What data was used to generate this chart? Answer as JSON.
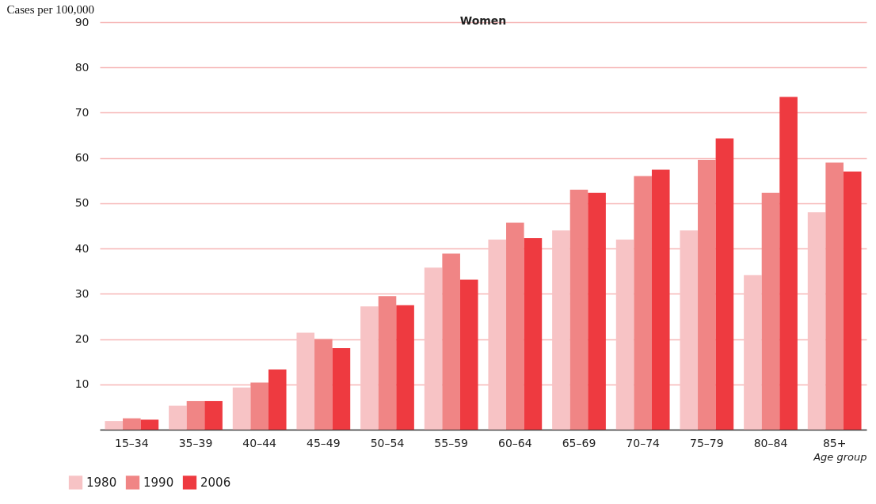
{
  "chart_data": {
    "type": "bar",
    "title": "Women",
    "xlabel": "Age group",
    "ylabel": "Cases per 100,000",
    "categories": [
      "15–34",
      "35–39",
      "40–44",
      "45–49",
      "50–54",
      "55–59",
      "60–64",
      "65–69",
      "70–74",
      "75–79",
      "80–84",
      "85+"
    ],
    "series": [
      {
        "name": "1980",
        "color": "#f7c3c5",
        "values": [
          1.9,
          5.3,
          9.3,
          21.4,
          27.2,
          35.8,
          42,
          44,
          42,
          44,
          34.1,
          48
        ]
      },
      {
        "name": "1990",
        "color": "#f08585",
        "values": [
          2.5,
          6.3,
          10.4,
          20,
          29.5,
          38.9,
          45.7,
          53,
          56,
          59.6,
          52.3,
          59
        ]
      },
      {
        "name": "2006",
        "color": "#ee3a40",
        "values": [
          2.2,
          6.3,
          13.3,
          18,
          27.5,
          33.1,
          42.3,
          52.3,
          57.4,
          64.3,
          73.5,
          57
        ]
      }
    ],
    "ylim": [
      0,
      90
    ],
    "yticks": [
      10,
      20,
      30,
      40,
      50,
      60,
      70,
      80,
      90
    ],
    "grid": "y",
    "legend": "bottom left"
  }
}
